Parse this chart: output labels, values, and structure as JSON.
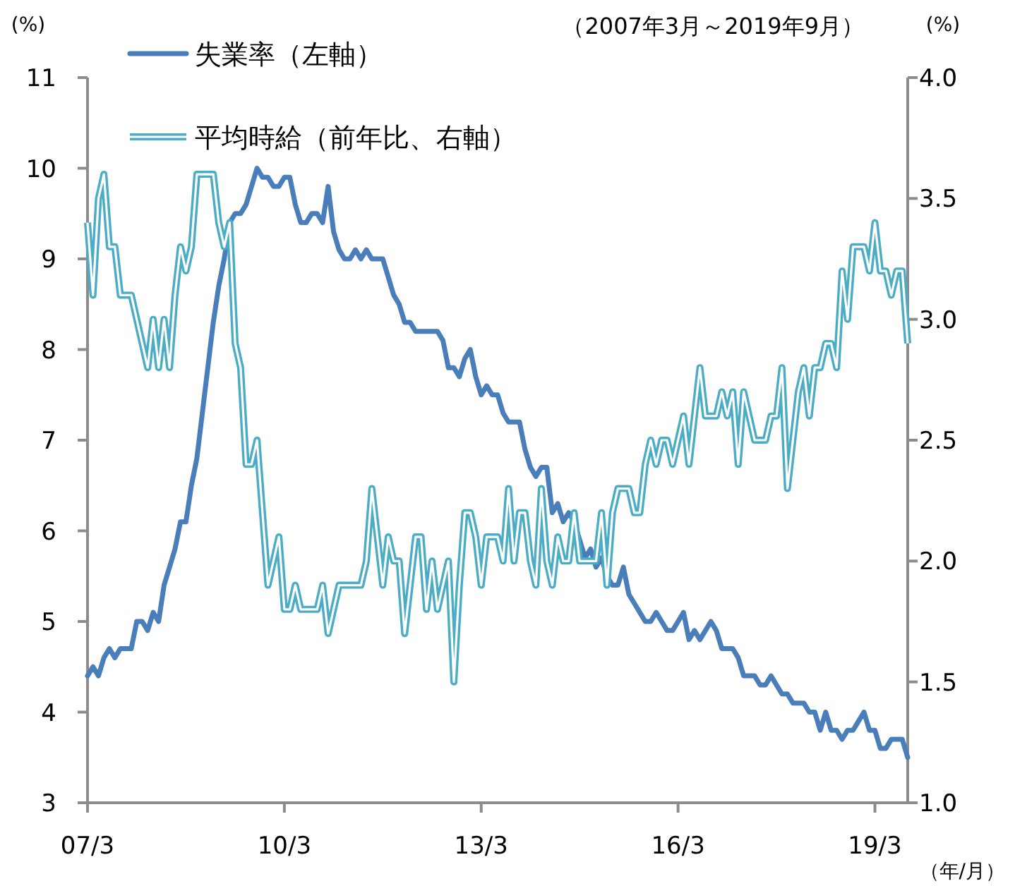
{
  "chart_data": {
    "type": "line",
    "ylabel": "(%)",
    "y2label": "(%)",
    "xlabel": "（年/月）",
    "annotations": [
      "（2007年3月～2019年9月）"
    ],
    "legend": "top left",
    "x": [
      "2007-03",
      "2007-04",
      "2007-05",
      "2007-06",
      "2007-07",
      "2007-08",
      "2007-09",
      "2007-10",
      "2007-11",
      "2007-12",
      "2008-01",
      "2008-02",
      "2008-03",
      "2008-04",
      "2008-05",
      "2008-06",
      "2008-07",
      "2008-08",
      "2008-09",
      "2008-10",
      "2008-11",
      "2008-12",
      "2009-01",
      "2009-02",
      "2009-03",
      "2009-04",
      "2009-05",
      "2009-06",
      "2009-07",
      "2009-08",
      "2009-09",
      "2009-10",
      "2009-11",
      "2009-12",
      "2010-01",
      "2010-02",
      "2010-03",
      "2010-04",
      "2010-05",
      "2010-06",
      "2010-07",
      "2010-08",
      "2010-09",
      "2010-10",
      "2010-11",
      "2010-12",
      "2011-01",
      "2011-02",
      "2011-03",
      "2011-04",
      "2011-05",
      "2011-06",
      "2011-07",
      "2011-08",
      "2011-09",
      "2011-10",
      "2011-11",
      "2011-12",
      "2012-01",
      "2012-02",
      "2012-03",
      "2012-04",
      "2012-05",
      "2012-06",
      "2012-07",
      "2012-08",
      "2012-09",
      "2012-10",
      "2012-11",
      "2012-12",
      "2013-01",
      "2013-02",
      "2013-03",
      "2013-04",
      "2013-05",
      "2013-06",
      "2013-07",
      "2013-08",
      "2013-09",
      "2013-10",
      "2013-11",
      "2013-12",
      "2014-01",
      "2014-02",
      "2014-03",
      "2014-04",
      "2014-05",
      "2014-06",
      "2014-07",
      "2014-08",
      "2014-09",
      "2014-10",
      "2014-11",
      "2014-12",
      "2015-01",
      "2015-02",
      "2015-03",
      "2015-04",
      "2015-05",
      "2015-06",
      "2015-07",
      "2015-08",
      "2015-09",
      "2015-10",
      "2015-11",
      "2015-12",
      "2016-01",
      "2016-02",
      "2016-03",
      "2016-04",
      "2016-05",
      "2016-06",
      "2016-07",
      "2016-08",
      "2016-09",
      "2016-10",
      "2016-11",
      "2016-12",
      "2017-01",
      "2017-02",
      "2017-03",
      "2017-04",
      "2017-05",
      "2017-06",
      "2017-07",
      "2017-08",
      "2017-09",
      "2017-10",
      "2017-11",
      "2017-12",
      "2018-01",
      "2018-02",
      "2018-03",
      "2018-04",
      "2018-05",
      "2018-06",
      "2018-07",
      "2018-08",
      "2018-09",
      "2018-10",
      "2018-11",
      "2018-12",
      "2019-01",
      "2019-02",
      "2019-03",
      "2019-04",
      "2019-05",
      "2019-06",
      "2019-07",
      "2019-08",
      "2019-09"
    ],
    "xlim": [
      "2007-03",
      "2019-09"
    ],
    "xticks": [
      {
        "value": "2007-03",
        "label": "07/3"
      },
      {
        "value": "2010-03",
        "label": "10/3"
      },
      {
        "value": "2013-03",
        "label": "13/3"
      },
      {
        "value": "2016-03",
        "label": "16/3"
      },
      {
        "value": "2019-03",
        "label": "19/3"
      }
    ],
    "ylim": [
      3,
      11
    ],
    "yticks": [
      3,
      4,
      5,
      6,
      7,
      8,
      9,
      10,
      11
    ],
    "y2lim": [
      1.0,
      4.0
    ],
    "y2ticks": [
      {
        "value": 1.0,
        "label": "1.0"
      },
      {
        "value": 1.5,
        "label": "1.5"
      },
      {
        "value": 2.0,
        "label": "2.0"
      },
      {
        "value": 2.5,
        "label": "2.5"
      },
      {
        "value": 3.0,
        "label": "3.0"
      },
      {
        "value": 3.5,
        "label": "3.5"
      },
      {
        "value": 4.0,
        "label": "4.0"
      }
    ],
    "grid": false,
    "marker": "none",
    "series": [
      {
        "name": "失業率（左軸）",
        "color": "#4a7ebb",
        "line_style": "solid",
        "values": [
          4.4,
          4.5,
          4.4,
          4.6,
          4.7,
          4.6,
          4.7,
          4.7,
          4.7,
          5.0,
          5.0,
          4.9,
          5.1,
          5.0,
          5.4,
          5.6,
          5.8,
          6.1,
          6.1,
          6.5,
          6.8,
          7.3,
          7.8,
          8.3,
          8.7,
          9.0,
          9.4,
          9.5,
          9.5,
          9.6,
          9.8,
          10.0,
          9.9,
          9.9,
          9.8,
          9.8,
          9.9,
          9.9,
          9.6,
          9.4,
          9.4,
          9.5,
          9.5,
          9.4,
          9.8,
          9.3,
          9.1,
          9.0,
          9.0,
          9.1,
          9.0,
          9.1,
          9.0,
          9.0,
          9.0,
          8.8,
          8.6,
          8.5,
          8.3,
          8.3,
          8.2,
          8.2,
          8.2,
          8.2,
          8.2,
          8.1,
          7.8,
          7.8,
          7.7,
          7.9,
          8.0,
          7.7,
          7.5,
          7.6,
          7.5,
          7.5,
          7.3,
          7.2,
          7.2,
          7.2,
          6.9,
          6.7,
          6.6,
          6.7,
          6.7,
          6.2,
          6.3,
          6.1,
          6.2,
          6.1,
          5.9,
          5.7,
          5.8,
          5.6,
          5.7,
          5.5,
          5.4,
          5.4,
          5.6,
          5.3,
          5.2,
          5.1,
          5.0,
          5.0,
          5.1,
          5.0,
          4.9,
          4.9,
          5.0,
          5.1,
          4.8,
          4.9,
          4.8,
          4.9,
          5.0,
          4.9,
          4.7,
          4.7,
          4.7,
          4.6,
          4.4,
          4.4,
          4.4,
          4.3,
          4.3,
          4.4,
          4.3,
          4.2,
          4.2,
          4.1,
          4.1,
          4.1,
          4.0,
          4.0,
          3.8,
          4.0,
          3.8,
          3.8,
          3.7,
          3.8,
          3.8,
          3.9,
          4.0,
          3.8,
          3.8,
          3.6,
          3.6,
          3.7,
          3.7,
          3.7,
          3.5
        ]
      },
      {
        "name": "平均時給（前年比、右軸）",
        "color": "#4bacc6",
        "line_style": "solid",
        "axis": "y2",
        "values": [
          3.4,
          3.1,
          3.5,
          3.6,
          3.3,
          3.3,
          3.1,
          3.1,
          3.1,
          3.0,
          2.9,
          2.8,
          3.0,
          2.8,
          3.0,
          2.8,
          3.1,
          3.3,
          3.2,
          3.3,
          3.6,
          3.6,
          3.6,
          3.6,
          3.4,
          3.3,
          3.4,
          2.9,
          2.8,
          2.4,
          2.4,
          2.5,
          2.2,
          1.9,
          2.0,
          2.1,
          1.8,
          1.8,
          1.9,
          1.8,
          1.8,
          1.8,
          1.8,
          1.9,
          1.7,
          1.8,
          1.9,
          1.9,
          1.9,
          1.9,
          1.9,
          2.0,
          2.3,
          2.1,
          1.9,
          2.1,
          2.0,
          2.0,
          1.7,
          1.9,
          2.1,
          2.1,
          1.8,
          2.0,
          1.8,
          1.9,
          2.0,
          1.5,
          1.9,
          2.2,
          2.2,
          2.1,
          1.9,
          2.1,
          2.1,
          2.1,
          2.0,
          2.3,
          2.0,
          2.2,
          2.2,
          2.0,
          1.9,
          2.3,
          2.0,
          1.9,
          2.1,
          2.0,
          2.0,
          2.2,
          2.0,
          2.0,
          2.0,
          2.0,
          2.2,
          1.9,
          2.2,
          2.3,
          2.3,
          2.3,
          2.2,
          2.2,
          2.4,
          2.5,
          2.4,
          2.5,
          2.5,
          2.4,
          2.5,
          2.6,
          2.4,
          2.6,
          2.8,
          2.6,
          2.6,
          2.6,
          2.7,
          2.6,
          2.7,
          2.4,
          2.7,
          2.6,
          2.5,
          2.5,
          2.5,
          2.6,
          2.6,
          2.8,
          2.3,
          2.5,
          2.7,
          2.8,
          2.6,
          2.8,
          2.8,
          2.9,
          2.9,
          2.8,
          3.2,
          3.0,
          3.3,
          3.3,
          3.3,
          3.2,
          3.4,
          3.2,
          3.2,
          3.1,
          3.2,
          3.2,
          2.9
        ]
      }
    ]
  }
}
